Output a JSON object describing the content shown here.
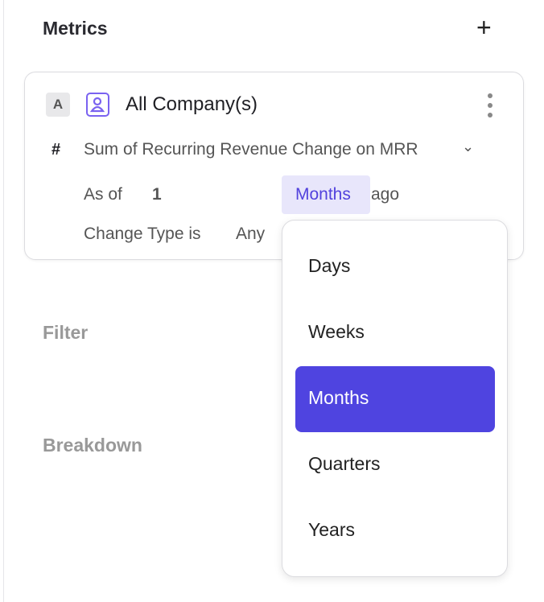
{
  "panel": {
    "title": "Metrics",
    "add_icon": "plus-icon"
  },
  "metric_card": {
    "badge": "A",
    "entity_icon": "person-icon",
    "entity": "All Company(s)",
    "menu_icon": "kebab-icon",
    "hash": "#",
    "metric": "Sum of Recurring Revenue Change on MRR",
    "as_of_label": "As of",
    "as_of_value": "1",
    "unit": "Months",
    "ago": "ago",
    "change_type_label": "Change Type is",
    "change_type_value": "Any"
  },
  "sections": {
    "filter": "Filter",
    "breakdown": "Breakdown"
  },
  "dropdown": {
    "options": [
      "Days",
      "Weeks",
      "Months",
      "Quarters",
      "Years"
    ],
    "selected": "Months",
    "accent": "#4f44e0"
  }
}
